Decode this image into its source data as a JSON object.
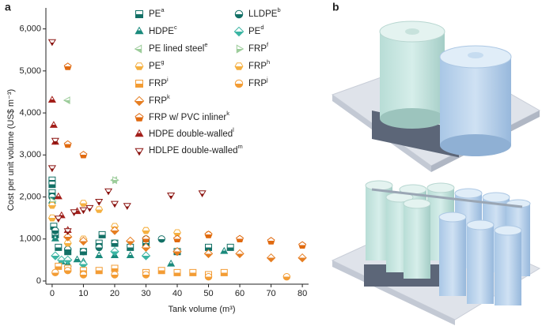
{
  "panel_a": "a",
  "panel_b": "b",
  "chart_data": {
    "type": "scatter",
    "xlabel": "Tank volume (m³)",
    "ylabel": "Cost per unit volume (US$ m⁻³)",
    "xlim": [
      -2,
      82
    ],
    "ylim": [
      0,
      6500
    ],
    "xticks": [
      0,
      10,
      20,
      30,
      40,
      50,
      60,
      70,
      80
    ],
    "yticks": [
      0,
      {
        "value": 1000,
        "label": "1,000"
      },
      {
        "value": 2000,
        "label": "2,000"
      },
      {
        "value": 3000,
        "label": "3,000"
      },
      {
        "value": 4000,
        "label": "4,000"
      },
      {
        "value": 5000,
        "label": "5,000"
      },
      {
        "value": 6000,
        "label": "6,000"
      }
    ],
    "series": [
      {
        "name": "PE",
        "note": "a",
        "color": "#137066",
        "marker": "square",
        "x": [
          0,
          0,
          0,
          0.5,
          1,
          2,
          5,
          10,
          15,
          16,
          20,
          25,
          30,
          40,
          50,
          57
        ],
        "values": [
          2400,
          2300,
          2100,
          1300,
          1100,
          800,
          700,
          700,
          900,
          1100,
          900,
          800,
          900,
          700,
          800,
          800
        ]
      },
      {
        "name": "LLDPE",
        "note": "b",
        "color": "#137066",
        "marker": "circle",
        "x": [
          0,
          1,
          5,
          10,
          15,
          20,
          30,
          35
        ],
        "values": [
          2000,
          1200,
          750,
          700,
          800,
          900,
          1000,
          1000
        ]
      },
      {
        "name": "HDPE",
        "note": "c",
        "color": "#1a8a7c",
        "marker": "triangle",
        "x": [
          0,
          1,
          3,
          5,
          8,
          10,
          15,
          20,
          25,
          38,
          55
        ],
        "values": [
          1900,
          1000,
          450,
          400,
          500,
          450,
          600,
          600,
          600,
          400,
          700
        ]
      },
      {
        "name": "PE",
        "note": "d",
        "color": "#3bb5a3",
        "marker": "diamond",
        "x": [
          1,
          3,
          5,
          10,
          20,
          30
        ],
        "values": [
          600,
          500,
          500,
          400,
          700,
          600
        ]
      },
      {
        "name": "PE lined steel",
        "note": "e",
        "color": "#9ccc9a",
        "marker": "tri-left",
        "x": [
          5,
          20
        ],
        "values": [
          4300,
          2400
        ]
      },
      {
        "name": "FRP",
        "note": "f",
        "color": "#9ccc9a",
        "marker": "tri-right",
        "x": [
          0,
          20
        ],
        "values": [
          1900,
          2400
        ]
      },
      {
        "name": "PE",
        "note": "g",
        "color": "#f5b041",
        "marker": "hexagon",
        "x": [
          0,
          10,
          15,
          30,
          40,
          50
        ],
        "values": [
          1800,
          1850,
          1700,
          1200,
          1150,
          1100
        ]
      },
      {
        "name": "FRP",
        "note": "h",
        "color": "#f5b041",
        "marker": "hexagon",
        "x": [
          0,
          5,
          10,
          20,
          30
        ],
        "values": [
          1500,
          900,
          1000,
          1300,
          1200
        ]
      },
      {
        "name": "FRP",
        "note": "i",
        "color": "#f39c34",
        "marker": "square",
        "x": [
          2,
          5,
          10,
          15,
          20,
          30,
          35,
          40,
          45,
          50,
          55
        ],
        "values": [
          350,
          300,
          250,
          250,
          300,
          200,
          250,
          200,
          200,
          150,
          200
        ]
      },
      {
        "name": "FRP",
        "note": "j",
        "color": "#f39c34",
        "marker": "circle",
        "x": [
          1,
          5,
          10,
          20,
          30,
          50,
          75
        ],
        "values": [
          200,
          250,
          150,
          150,
          150,
          100,
          100
        ]
      },
      {
        "name": "FRP",
        "note": "k",
        "color": "#e67e22",
        "marker": "diamond",
        "x": [
          5,
          10,
          20,
          25,
          30,
          40,
          50,
          60,
          70,
          80
        ],
        "values": [
          1050,
          950,
          1200,
          950,
          800,
          700,
          650,
          650,
          550,
          550
        ]
      },
      {
        "name": "FRP w/ PVC inliner",
        "note": "k",
        "color": "#e06a10",
        "marker": "pentagon",
        "x": [
          5,
          10,
          5,
          30,
          40,
          50,
          60,
          70,
          80
        ],
        "values": [
          5100,
          3000,
          3250,
          1000,
          1000,
          1100,
          1000,
          950,
          850
        ]
      },
      {
        "name": "HDPE double-walled",
        "note": "l",
        "color": "#a31f1a",
        "marker": "triangle",
        "x": [
          0,
          0.5,
          1,
          2,
          3,
          5,
          8
        ],
        "values": [
          4300,
          3700,
          3300,
          2000,
          1550,
          1200,
          1650
        ]
      },
      {
        "name": "HDLPE double-walled",
        "note": "m",
        "color": "#8b1410",
        "marker": "tri-down",
        "x": [
          0,
          0,
          1,
          2,
          5,
          7,
          10,
          12,
          15,
          18,
          20,
          24,
          38,
          48
        ],
        "values": [
          5700,
          2700,
          3350,
          1500,
          1200,
          1650,
          1700,
          1750,
          1900,
          2150,
          1850,
          1800,
          2050,
          2100
        ]
      }
    ]
  }
}
